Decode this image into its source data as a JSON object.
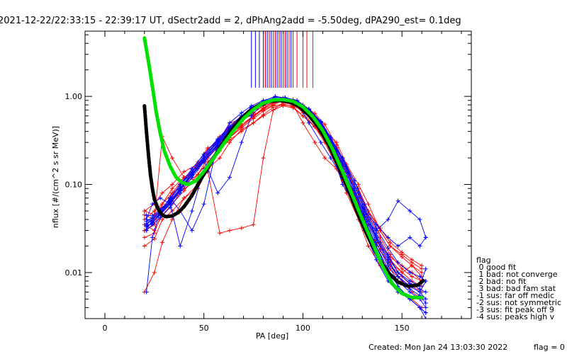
{
  "header": {
    "title": "2021-12-22/22:33:15 - 22:39:17 UT, dSectr2add = 2, dPhAng2add = -5.50deg, dPA290_est=   0.1deg"
  },
  "footer": {
    "created": "Created: Mon Jan 24 13:03:30 2022",
    "flag": "flag = 0"
  },
  "legend": {
    "title": "flag",
    "entries": [
      " 0 good fit",
      " 1 bad: not converge",
      " 2 bad: no fit",
      " 3 bad: bad fam stat",
      "-1 sus: far off medic",
      "-2 sus: not symmetric",
      "-3 sus: fit peak off 9",
      "-4 sus: peaks high v"
    ]
  },
  "chart_data": {
    "type": "line",
    "title": "2021-12-22/22:33:15 - 22:39:17 UT, dSectr2add = 2, dPhAng2add = -5.50deg, dPA290_est=   0.1deg",
    "xlabel": "PA [deg]",
    "ylabel": "nflux [#/(cm^2 s sr MeV)]",
    "xlim": [
      -10,
      185
    ],
    "ylim": [
      0.003,
      5.5
    ],
    "yscale": "log",
    "xticks": [
      0,
      50,
      100,
      150
    ],
    "xtick_labels": [
      "0",
      "50",
      "100",
      "150"
    ],
    "yticks": [
      0.01,
      0.1,
      1.0
    ],
    "ytick_labels": [
      "0.01",
      "0.10",
      "1.00"
    ],
    "grid": false,
    "colors": {
      "red": "#ff0000",
      "blue": "#0000ff",
      "green": "#00e000",
      "black": "#000000"
    },
    "red_x": [
      20,
      25,
      29,
      34,
      40,
      47,
      52,
      58,
      63,
      69,
      75,
      80,
      85,
      90,
      95,
      100,
      106,
      111,
      117,
      122,
      128,
      133,
      139,
      144,
      150,
      155,
      160
    ],
    "blue_x": [
      21,
      24,
      28,
      33,
      38,
      44,
      50,
      57,
      63,
      69,
      74,
      80,
      86,
      91,
      97,
      103,
      109,
      114,
      120,
      126,
      131,
      137,
      143,
      148,
      154,
      159,
      162
    ],
    "red_series": [
      [
        0.045,
        0.04,
        0.05,
        0.07,
        0.1,
        0.13,
        0.2,
        0.28,
        0.4,
        0.52,
        0.65,
        0.78,
        0.85,
        0.88,
        0.82,
        0.7,
        0.55,
        0.38,
        0.24,
        0.14,
        0.08,
        0.045,
        0.025,
        0.016,
        0.011,
        0.009,
        0.008
      ],
      [
        0.03,
        0.035,
        0.06,
        0.09,
        0.12,
        0.16,
        0.22,
        0.35,
        0.45,
        0.6,
        0.7,
        0.82,
        0.92,
        0.95,
        0.88,
        0.75,
        0.52,
        0.35,
        0.2,
        0.1,
        0.05,
        0.03,
        0.018,
        0.012,
        0.009,
        0.007,
        0.006
      ],
      [
        0.025,
        0.028,
        0.05,
        0.08,
        0.1,
        0.18,
        0.26,
        0.3,
        0.5,
        0.55,
        0.62,
        0.7,
        0.8,
        0.9,
        0.85,
        0.65,
        0.45,
        0.32,
        0.18,
        0.12,
        0.06,
        0.028,
        0.02,
        0.013,
        0.01,
        0.012,
        0.009
      ],
      [
        0.05,
        0.045,
        0.055,
        0.065,
        0.09,
        0.11,
        0.14,
        0.028,
        0.03,
        0.032,
        0.035,
        0.2,
        0.7,
        0.85,
        0.8,
        0.5,
        0.3,
        0.2,
        0.15,
        0.09,
        0.055,
        0.04,
        0.02,
        0.015,
        0.012,
        0.01,
        0.008
      ],
      [
        0.02,
        0.024,
        0.04,
        0.05,
        0.07,
        0.09,
        0.15,
        0.2,
        0.3,
        0.42,
        0.5,
        0.62,
        0.75,
        0.8,
        0.78,
        0.68,
        0.58,
        0.42,
        0.3,
        0.17,
        0.1,
        0.06,
        0.03,
        0.02,
        0.015,
        0.012,
        0.01
      ],
      [
        0.04,
        0.05,
        0.06,
        0.08,
        0.12,
        0.15,
        0.25,
        0.32,
        0.38,
        0.46,
        0.58,
        0.72,
        0.88,
        0.96,
        0.92,
        0.8,
        0.64,
        0.48,
        0.28,
        0.15,
        0.07,
        0.035,
        0.022,
        0.014,
        0.01,
        0.008,
        0.007
      ],
      [
        0.006,
        0.01,
        0.022,
        0.04,
        0.07,
        0.1,
        0.14,
        0.25,
        0.32,
        0.4,
        0.5,
        0.6,
        0.7,
        0.78,
        0.74,
        0.6,
        0.45,
        0.3,
        0.16,
        0.08,
        0.04,
        0.02,
        0.012,
        0.008,
        0.006,
        0.005,
        0.004
      ],
      [
        0.035,
        0.03,
        0.045,
        0.06,
        0.085,
        0.13,
        0.18,
        0.26,
        0.36,
        0.48,
        0.6,
        0.72,
        0.83,
        0.9,
        0.86,
        0.72,
        0.56,
        0.4,
        0.26,
        0.16,
        0.09,
        0.05,
        0.03,
        0.02,
        0.016,
        0.013,
        0.011
      ],
      [
        0.05,
        0.06,
        0.08,
        0.1,
        0.14,
        0.17,
        0.22,
        0.28,
        0.34,
        0.44,
        0.56,
        0.68,
        0.78,
        0.82,
        0.76,
        0.6,
        0.46,
        0.34,
        0.22,
        0.14,
        0.08,
        0.05,
        0.032,
        0.022,
        0.017,
        0.014,
        0.012
      ],
      [
        0.03,
        0.04,
        0.35,
        0.2,
        0.12,
        0.11,
        0.16,
        0.24,
        0.34,
        0.46,
        0.6,
        0.74,
        0.86,
        0.9,
        0.84,
        0.68,
        0.5,
        0.34,
        0.2,
        0.12,
        0.06,
        0.03,
        0.018,
        0.011,
        0.008,
        0.006,
        0.005
      ]
    ],
    "blue_series": [
      [
        0.04,
        0.038,
        0.045,
        0.06,
        0.085,
        0.13,
        0.2,
        0.3,
        0.42,
        0.56,
        0.7,
        0.82,
        0.9,
        0.92,
        0.85,
        0.68,
        0.48,
        0.3,
        0.17,
        0.09,
        0.045,
        0.022,
        0.012,
        0.008,
        0.006,
        0.005,
        0.004
      ],
      [
        0.035,
        0.04,
        0.05,
        0.07,
        0.1,
        0.15,
        0.22,
        0.33,
        0.46,
        0.6,
        0.74,
        0.86,
        0.95,
        0.96,
        0.88,
        0.7,
        0.5,
        0.32,
        0.18,
        0.1,
        0.05,
        0.025,
        0.014,
        0.009,
        0.007,
        0.006,
        0.005
      ],
      [
        0.03,
        0.035,
        0.042,
        0.055,
        0.08,
        0.12,
        0.18,
        0.27,
        0.38,
        0.52,
        0.66,
        0.8,
        0.9,
        0.94,
        0.87,
        0.69,
        0.47,
        0.29,
        0.16,
        0.085,
        0.042,
        0.02,
        0.011,
        0.007,
        0.005,
        0.004,
        0.0035
      ],
      [
        0.04,
        0.04,
        0.05,
        0.07,
        0.05,
        0.03,
        0.06,
        0.3,
        0.5,
        0.65,
        0.78,
        0.9,
        0.98,
        0.97,
        0.9,
        0.72,
        0.4,
        0.26,
        0.1,
        0.06,
        0.03,
        0.014,
        0.008,
        0.006,
        0.005,
        0.004,
        0.0035
      ],
      [
        0.006,
        0.025,
        0.05,
        0.07,
        0.1,
        0.14,
        0.2,
        0.28,
        0.4,
        0.6,
        0.75,
        0.88,
        1.0,
        0.96,
        0.86,
        0.7,
        0.5,
        0.32,
        0.2,
        0.1,
        0.05,
        0.025,
        0.014,
        0.009,
        0.007,
        0.006,
        0.008
      ],
      [
        0.038,
        0.042,
        0.05,
        0.065,
        0.09,
        0.13,
        0.19,
        0.08,
        0.12,
        0.3,
        0.6,
        0.84,
        0.94,
        0.9,
        0.8,
        0.62,
        0.44,
        0.3,
        0.2,
        0.08,
        0.05,
        0.035,
        0.025,
        0.02,
        0.025,
        0.02,
        0.025
      ],
      [
        0.04,
        0.06,
        0.07,
        0.06,
        0.02,
        0.05,
        0.15,
        0.25,
        0.4,
        0.55,
        0.68,
        0.8,
        0.9,
        0.92,
        0.86,
        0.7,
        0.52,
        0.34,
        0.2,
        0.11,
        0.055,
        0.028,
        0.016,
        0.01,
        0.008,
        0.007,
        0.011
      ],
      [
        0.034,
        0.036,
        0.048,
        0.064,
        0.09,
        0.135,
        0.21,
        0.31,
        0.44,
        0.58,
        0.72,
        0.84,
        0.93,
        0.95,
        0.88,
        0.7,
        0.48,
        0.28,
        0.15,
        0.08,
        0.04,
        0.02,
        0.01,
        0.006,
        0.005,
        0.004,
        0.003
      ],
      [
        0.03,
        0.04,
        0.05,
        0.07,
        0.1,
        0.15,
        0.22,
        0.32,
        0.44,
        0.58,
        0.7,
        0.82,
        0.92,
        0.95,
        0.88,
        0.5,
        0.3,
        0.2,
        0.12,
        0.07,
        0.04,
        0.03,
        0.04,
        0.065,
        0.05,
        0.04,
        0.025
      ],
      [
        0.045,
        0.044,
        0.052,
        0.068,
        0.095,
        0.14,
        0.21,
        0.3,
        0.43,
        0.57,
        0.71,
        0.83,
        0.92,
        0.94,
        0.87,
        0.7,
        0.5,
        0.31,
        0.17,
        0.09,
        0.046,
        0.024,
        0.013,
        0.009,
        0.0065,
        0.0055,
        0.0045
      ],
      [
        0.036,
        0.04,
        0.047,
        0.063,
        0.087,
        0.128,
        0.19,
        0.29,
        0.41,
        0.55,
        0.69,
        0.81,
        0.91,
        0.93,
        0.86,
        0.71,
        0.51,
        0.33,
        0.19,
        0.1,
        0.052,
        0.026,
        0.015,
        0.01,
        0.0075,
        0.0065,
        0.006
      ],
      [
        0.033,
        0.037,
        0.046,
        0.061,
        0.086,
        0.126,
        0.185,
        0.28,
        0.4,
        0.54,
        0.68,
        0.8,
        0.9,
        0.93,
        0.87,
        0.72,
        0.52,
        0.34,
        0.2,
        0.11,
        0.06,
        0.032,
        0.019,
        0.013,
        0.01,
        0.009,
        0.008
      ]
    ],
    "blue_verticals_x": [
      74,
      76,
      78,
      80,
      81,
      82,
      83,
      84,
      85,
      86,
      87,
      88,
      89,
      90,
      91,
      92,
      94
    ],
    "red_verticals_x": [
      81,
      83,
      85,
      86,
      88,
      90,
      91,
      93,
      95,
      97,
      100,
      102,
      105
    ],
    "fit_green_x": [
      20,
      22,
      24,
      26,
      28,
      30,
      33,
      36,
      39,
      42,
      46,
      50,
      55,
      60,
      65,
      70,
      75,
      80,
      85,
      90,
      95,
      100,
      105,
      110,
      115,
      120,
      125,
      130,
      135,
      140,
      145,
      150,
      155,
      160
    ],
    "fit_green_y": [
      4.6,
      2.5,
      1.3,
      0.65,
      0.38,
      0.24,
      0.16,
      0.12,
      0.105,
      0.1,
      0.11,
      0.14,
      0.2,
      0.29,
      0.41,
      0.56,
      0.71,
      0.84,
      0.91,
      0.92,
      0.88,
      0.76,
      0.59,
      0.41,
      0.25,
      0.14,
      0.075,
      0.04,
      0.022,
      0.012,
      0.0075,
      0.0058,
      0.0052,
      0.0052
    ],
    "fit_black_x": [
      20,
      21,
      22,
      23,
      24,
      25,
      27,
      29,
      31,
      34,
      37,
      40,
      44,
      48,
      53,
      58,
      63,
      68,
      73,
      78,
      83,
      88,
      93,
      98,
      103,
      108,
      113,
      118,
      123,
      128,
      133,
      138,
      143,
      148,
      153,
      158,
      161
    ],
    "fit_black_y": [
      0.78,
      0.4,
      0.22,
      0.13,
      0.09,
      0.068,
      0.052,
      0.045,
      0.043,
      0.044,
      0.048,
      0.056,
      0.075,
      0.11,
      0.17,
      0.26,
      0.39,
      0.54,
      0.68,
      0.8,
      0.88,
      0.9,
      0.87,
      0.77,
      0.61,
      0.44,
      0.28,
      0.16,
      0.085,
      0.045,
      0.025,
      0.015,
      0.01,
      0.0078,
      0.007,
      0.0072,
      0.0082
    ]
  }
}
